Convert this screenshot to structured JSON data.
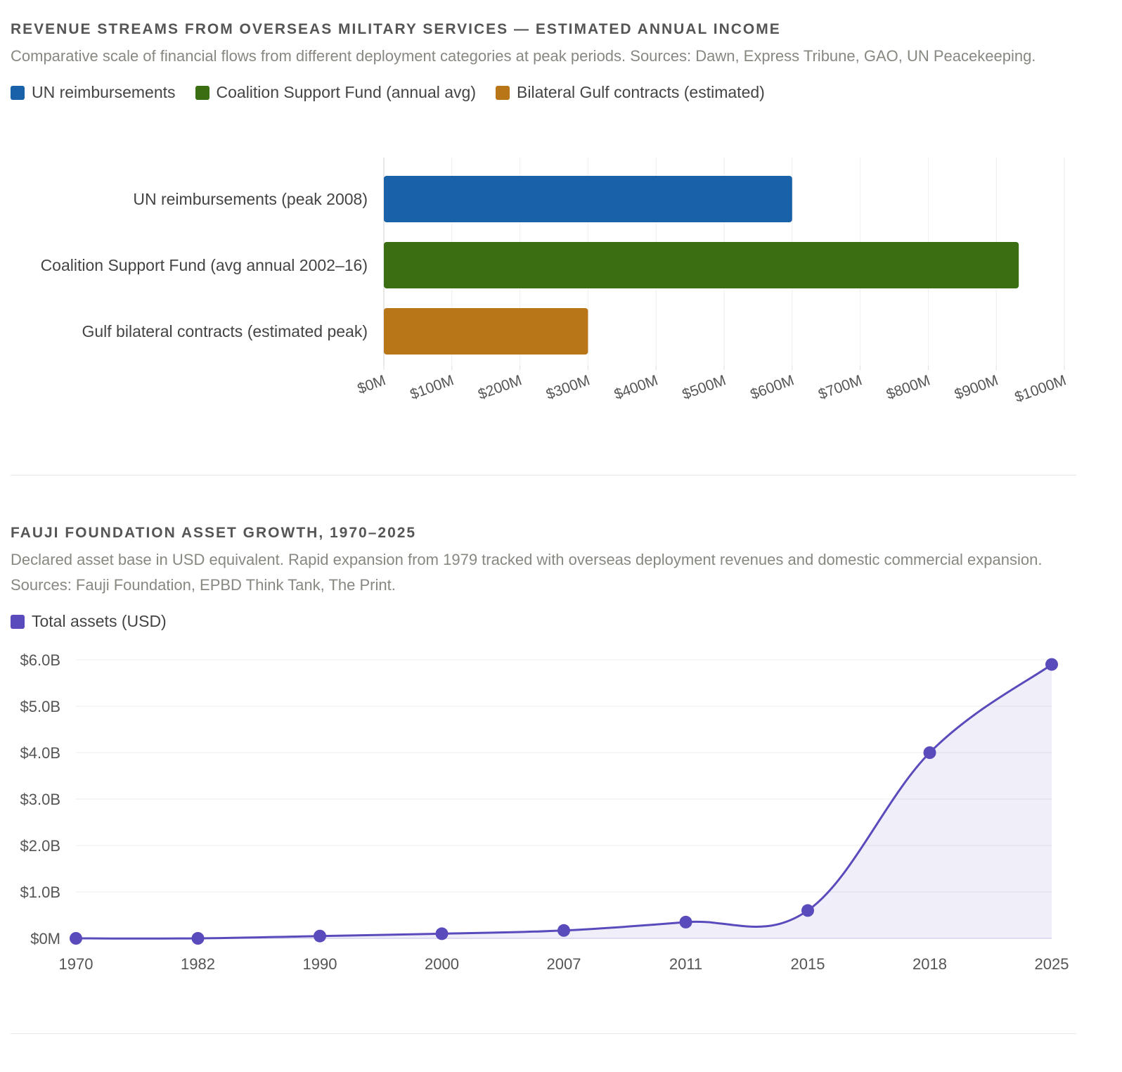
{
  "charts": [
    {
      "id": "revenue",
      "title": "REVENUE STREAMS FROM OVERSEAS MILITARY SERVICES — ESTIMATED ANNUAL INCOME",
      "subtitle": "Comparative scale of financial flows from different deployment categories at peak periods. Sources: Dawn, Express Tribune, GAO, UN Peacekeeping.",
      "legend": [
        {
          "label": "UN reimbursements",
          "color": "#1961a8"
        },
        {
          "label": "Coalition Support Fund (annual avg)",
          "color": "#3b6e12"
        },
        {
          "label": "Bilateral Gulf contracts (estimated)",
          "color": "#b87619"
        }
      ]
    },
    {
      "id": "fauji",
      "title": "FAUJI FOUNDATION ASSET GROWTH, 1970–2025",
      "subtitle": "Declared asset base in USD equivalent. Rapid expansion from 1979 tracked with overseas deployment revenues and domestic commercial expansion. Sources: Fauji Foundation, EPBD Think Tank, The Print.",
      "legend": [
        {
          "label": "Total assets (USD)",
          "color": "#5a4bbd"
        }
      ]
    }
  ],
  "chart_data": [
    {
      "type": "bar",
      "orientation": "horizontal",
      "categories": [
        "UN reimbursements (peak 2008)",
        "Coalition Support Fund (avg annual 2002–16)",
        "Gulf bilateral contracts (estimated peak)"
      ],
      "values": [
        600,
        933,
        300
      ],
      "colors": [
        "#1961a8",
        "#3b6e12",
        "#b87619"
      ],
      "unit": "M USD",
      "xlim": [
        0,
        1000
      ],
      "xticks": [
        "$0M",
        "$100M",
        "$200M",
        "$300M",
        "$400M",
        "$500M",
        "$600M",
        "$700M",
        "$800M",
        "$900M",
        "$1000M"
      ],
      "grid": true
    },
    {
      "type": "area",
      "series": [
        {
          "name": "Total assets (USD)",
          "color": "#5a4bbd",
          "values": [
            0.0,
            0.0,
            0.05,
            0.1,
            0.17,
            0.35,
            0.6,
            4.0,
            5.9
          ]
        }
      ],
      "x": [
        "1970",
        "1982",
        "1990",
        "2000",
        "2007",
        "2011",
        "2015",
        "2018",
        "2025"
      ],
      "unit": "B USD",
      "ylim": [
        0,
        6
      ],
      "yticks": [
        "$0M",
        "$1.0B",
        "$2.0B",
        "$3.0B",
        "$4.0B",
        "$5.0B",
        "$6.0B"
      ],
      "grid": true
    }
  ]
}
